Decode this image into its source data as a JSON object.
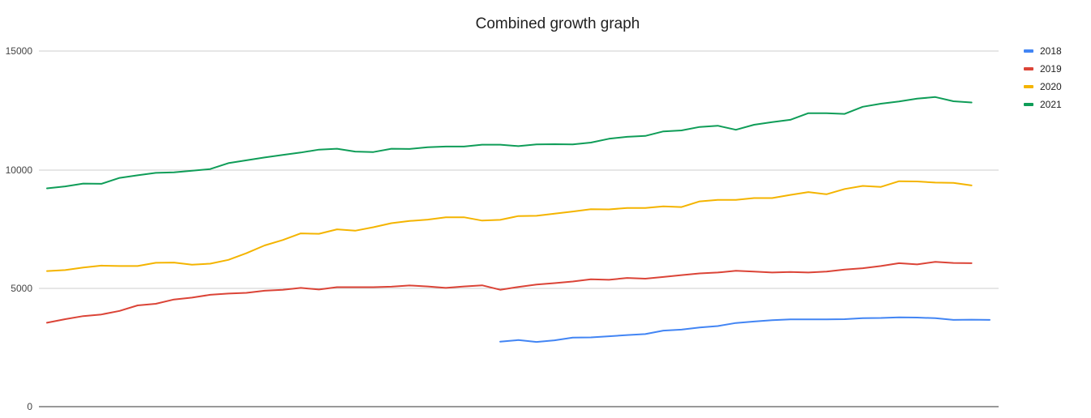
{
  "chart_data": {
    "type": "line",
    "title": "Combined growth graph",
    "xlabel": "",
    "ylabel": "",
    "ylim": [
      0,
      15000
    ],
    "y_ticks": [
      "0",
      "5000",
      "10000",
      "15000"
    ],
    "grid": true,
    "legend_position": "right",
    "x_count": 53,
    "series": [
      {
        "name": "2018",
        "color": "#4285f4",
        "start_index": 25,
        "values": [
          2740,
          2810,
          2730,
          2800,
          2910,
          2920,
          2970,
          3020,
          3060,
          3210,
          3250,
          3340,
          3400,
          3530,
          3590,
          3650,
          3680,
          3680,
          3680,
          3690,
          3730,
          3740,
          3770,
          3760,
          3730,
          3660,
          3670,
          3660
        ]
      },
      {
        "name": "2019",
        "color": "#db4437",
        "start_index": 0,
        "values": [
          3540,
          3690,
          3820,
          3890,
          4040,
          4270,
          4340,
          4520,
          4600,
          4720,
          4770,
          4800,
          4890,
          4930,
          5010,
          4940,
          5040,
          5040,
          5040,
          5060,
          5110,
          5070,
          5010,
          5070,
          5120,
          4930,
          5050,
          5150,
          5210,
          5280,
          5370,
          5350,
          5430,
          5400,
          5470,
          5550,
          5620,
          5660,
          5730,
          5700,
          5660,
          5680,
          5660,
          5700,
          5780,
          5840,
          5930,
          6050,
          6000,
          6110,
          6060,
          6050
        ]
      },
      {
        "name": "2020",
        "color": "#f4b400",
        "start_index": 0,
        "values": [
          5720,
          5760,
          5870,
          5950,
          5930,
          5930,
          6070,
          6080,
          5990,
          6030,
          6190,
          6470,
          6800,
          7030,
          7310,
          7290,
          7480,
          7420,
          7570,
          7740,
          7830,
          7890,
          7990,
          7990,
          7850,
          7880,
          8040,
          8050,
          8140,
          8230,
          8330,
          8320,
          8380,
          8380,
          8450,
          8420,
          8660,
          8720,
          8720,
          8800,
          8800,
          8930,
          9050,
          8960,
          9180,
          9310,
          9270,
          9510,
          9500,
          9450,
          9440,
          9330
        ]
      },
      {
        "name": "2021",
        "color": "#0f9d58",
        "start_index": 0,
        "values": [
          9210,
          9290,
          9410,
          9400,
          9650,
          9760,
          9860,
          9880,
          9950,
          10020,
          10270,
          10390,
          10510,
          10620,
          10720,
          10840,
          10880,
          10760,
          10740,
          10880,
          10870,
          10940,
          10970,
          10970,
          11050,
          11050,
          10990,
          11060,
          11070,
          11060,
          11140,
          11300,
          11380,
          11420,
          11610,
          11650,
          11800,
          11850,
          11680,
          11890,
          12000,
          12100,
          12380,
          12380,
          12350,
          12650,
          12780,
          12870,
          12990,
          13060,
          12880,
          12830
        ]
      }
    ]
  }
}
